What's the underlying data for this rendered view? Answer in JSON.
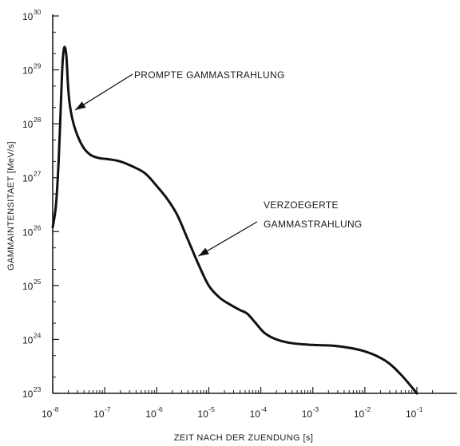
{
  "chart_data": {
    "type": "line",
    "xscale": "log",
    "yscale": "log",
    "xlim": [
      1e-08,
      0.1
    ],
    "ylim": [
      1e+23,
      1e+30
    ],
    "grid": false,
    "xlabel": "ZEIT NACH DER ZUENDUNG [s]",
    "ylabel": "GAMMAINTENSITAET [MeV/s]",
    "x_ticks": [
      {
        "base": "10",
        "exp": "-8",
        "value": 1e-08
      },
      {
        "base": "10",
        "exp": "-7",
        "value": 1e-07
      },
      {
        "base": "10",
        "exp": "-6",
        "value": 1e-06
      },
      {
        "base": "10",
        "exp": "-5",
        "value": 1e-05
      },
      {
        "base": "10",
        "exp": "-4",
        "value": 0.0001
      },
      {
        "base": "10",
        "exp": "-3",
        "value": 0.001
      },
      {
        "base": "10",
        "exp": "-2",
        "value": 0.01
      },
      {
        "base": "10",
        "exp": "-1",
        "value": 0.1
      }
    ],
    "y_ticks": [
      {
        "base": "10",
        "exp": "23",
        "value": 1e+23
      },
      {
        "base": "10",
        "exp": "24",
        "value": 1e+24
      },
      {
        "base": "10",
        "exp": "25",
        "value": 1e+25
      },
      {
        "base": "10",
        "exp": "26",
        "value": 1e+26
      },
      {
        "base": "10",
        "exp": "27",
        "value": 1e+27
      },
      {
        "base": "10",
        "exp": "28",
        "value": 1e+28
      },
      {
        "base": "10",
        "exp": "29",
        "value": 1e+29
      },
      {
        "base": "10",
        "exp": "30",
        "value": 1e+30
      }
    ],
    "series": [
      {
        "x": [
          1e-08,
          1.15e-08,
          1.3e-08,
          1.45e-08,
          1.55e-08,
          1.65e-08,
          1.75e-08,
          1.85e-08,
          1.95e-08,
          2.1e-08,
          2.4e-08,
          3e-08,
          4e-08,
          5.5e-08,
          8e-08,
          1.2e-07,
          2e-07,
          3.5e-07,
          6e-07,
          1e-06,
          1.6e-06,
          2.5e-06,
          4e-06,
          6.3e-06,
          1e-05,
          1.6e-05,
          2.5e-05,
          4e-05,
          5.5e-05,
          8e-05,
          0.00012,
          0.0002,
          0.0004,
          0.001,
          0.003,
          0.01,
          0.025,
          0.05,
          0.1
        ],
        "y": [
          1.2e+26,
          3e+26,
          2e+27,
          3e+28,
          1.4e+29,
          2.5e+29,
          2.5e+29,
          1.6e+29,
          6e+28,
          2.5e+28,
          1.2e+28,
          6e+27,
          3.5e+27,
          2.6e+27,
          2.3e+27,
          2.2e+27,
          2e+27,
          1.6e+27,
          1.2e+27,
          7e+26,
          4e+26,
          2e+26,
          7e+25,
          2.5e+25,
          1e+25,
          6e+24,
          4.5e+24,
          3.5e+24,
          3e+24,
          2e+24,
          1.3e+24,
          1e+24,
          8.5e+23,
          7.9e+23,
          7.5e+23,
          6e+23,
          4e+23,
          2.2e+23,
          1e+23
        ]
      }
    ],
    "annotations": [
      {
        "lines": [
          "PROMPTE GAMMASTRAHLUNG"
        ],
        "x": 2.7e-08,
        "y": 1.8e+28
      },
      {
        "lines": [
          "VERZOEGERTE",
          "GAMMASTRAHLUNG"
        ],
        "x": 6.3e-06,
        "y": 3.5e+25
      }
    ]
  }
}
